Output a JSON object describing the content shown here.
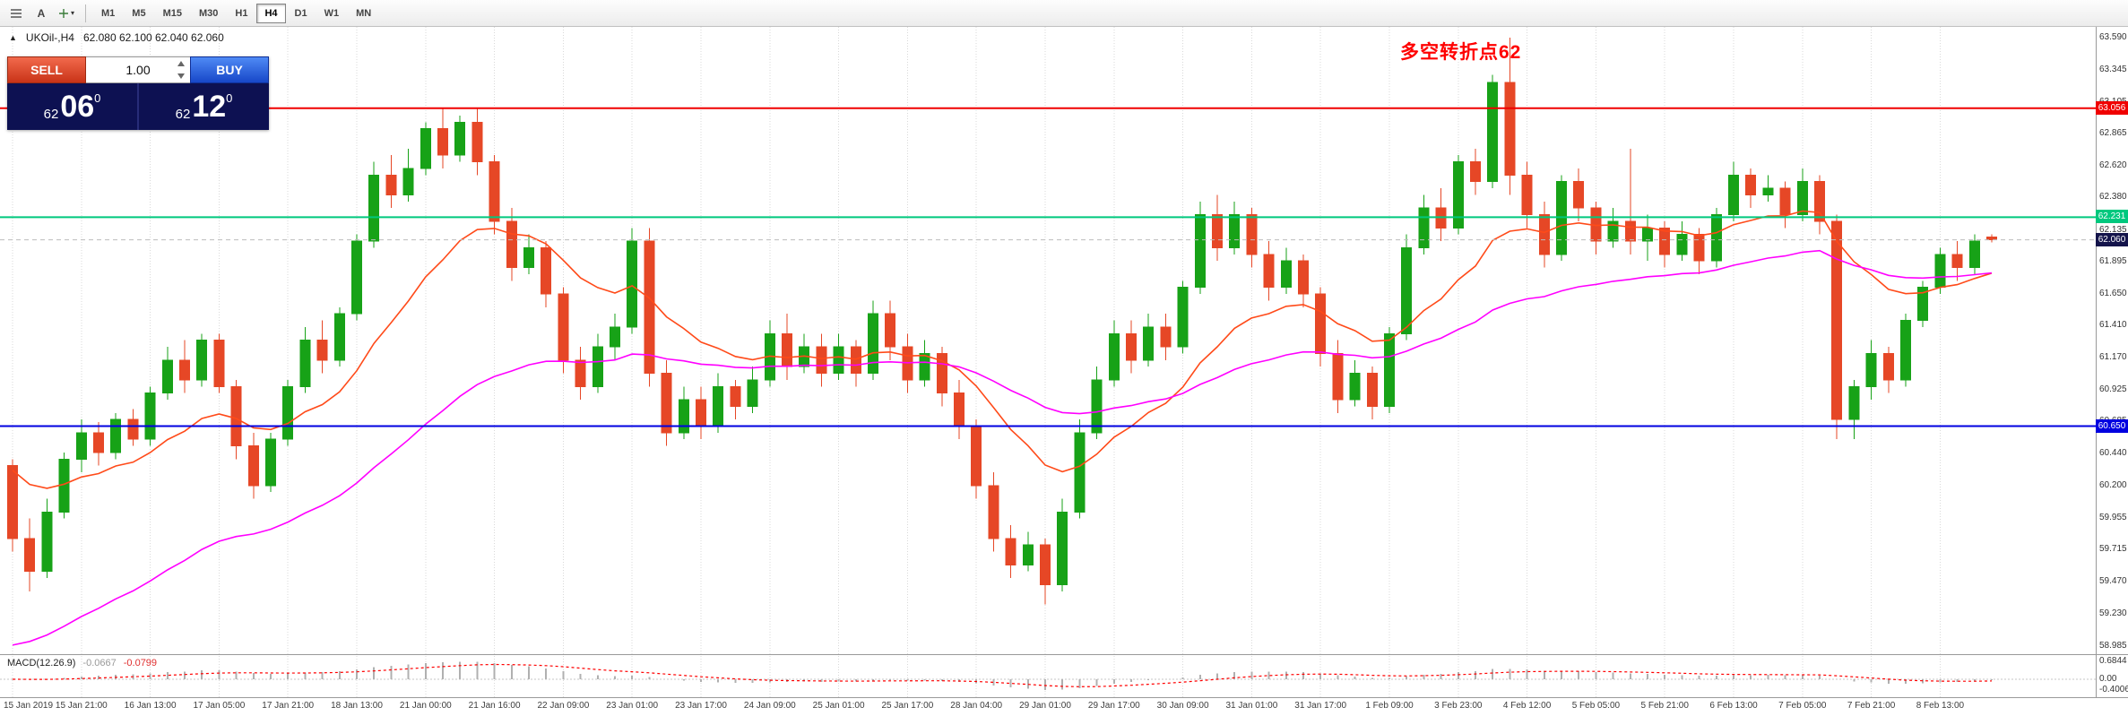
{
  "toolbar": {
    "text_tool_label": "A",
    "timeframes": [
      "M1",
      "M5",
      "M15",
      "M30",
      "H1",
      "H4",
      "D1",
      "W1",
      "MN"
    ],
    "active_timeframe": "H4"
  },
  "chart": {
    "symbol_header": "UKOil-,H4",
    "ohlc": "62.080 62.100 62.040 62.060",
    "annotation": "多空转折点62",
    "annotation_color": "#ff0000",
    "price_axis_labels": [
      "63.590",
      "63.345",
      "63.105",
      "62.865",
      "62.620",
      "62.380",
      "62.135",
      "61.895",
      "61.650",
      "61.410",
      "61.170",
      "60.925",
      "60.685",
      "60.440",
      "60.200",
      "59.955",
      "59.715",
      "59.470",
      "59.230",
      "58.985"
    ],
    "price_lines": [
      {
        "value": 63.056,
        "label": "63.056",
        "tag_color": "#f00000",
        "line_color": "#f00000",
        "dashed": false
      },
      {
        "value": 62.231,
        "label": "62.231",
        "tag_color": "#00c87e",
        "line_color": "#00c87e",
        "dashed": false
      },
      {
        "value": 62.06,
        "label": "62.060",
        "tag_color": "#14144b",
        "line_color": "#bcbcbc",
        "dashed": true
      },
      {
        "value": 60.65,
        "label": "60.650",
        "tag_color": "#0000e0",
        "line_color": "#0000e0",
        "dashed": false
      }
    ]
  },
  "trade_panel": {
    "sell_label": "SELL",
    "buy_label": "BUY",
    "volume": "1.00",
    "bid_whole": "62",
    "bid_big": "06",
    "bid_sup": "0",
    "ask_whole": "62",
    "ask_big": "12",
    "ask_sup": "0"
  },
  "macd": {
    "label": "MACD(12.26.9)",
    "value_main": "-0.0667",
    "value_signal": "-0.0799",
    "axis_labels": [
      "0.6844",
      "0.00",
      "-0.4006"
    ]
  },
  "chart_data": {
    "type": "candlestick",
    "symbol": "UKOil-",
    "timeframe": "H4",
    "ohlc_current": {
      "open": 62.08,
      "high": 62.1,
      "low": 62.04,
      "close": 62.06
    },
    "price_range": [
      58.985,
      63.59
    ],
    "horizontal_levels": [
      63.056,
      62.231,
      62.06,
      60.65
    ],
    "label_every": 4,
    "time_labels": [
      "15 Jan 2019",
      "15 Jan 21:00",
      "16 Jan 13:00",
      "17 Jan 05:00",
      "17 Jan 21:00",
      "18 Jan 13:00",
      "21 Jan 00:00",
      "21 Jan 16:00",
      "22 Jan 09:00",
      "23 Jan 01:00",
      "23 Jan 17:00",
      "24 Jan 09:00",
      "25 Jan 01:00",
      "25 Jan 17:00",
      "28 Jan 04:00",
      "29 Jan 01:00",
      "29 Jan 17:00",
      "30 Jan 09:00",
      "31 Jan 01:00",
      "31 Jan 17:00",
      "1 Feb 09:00",
      "3 Feb 23:00",
      "4 Feb 12:00",
      "5 Feb 05:00",
      "5 Feb 21:00",
      "6 Feb 13:00",
      "7 Feb 05:00",
      "7 Feb 21:00",
      "8 Feb 13:00"
    ],
    "candles": [
      [
        60.35,
        60.4,
        59.7,
        59.8
      ],
      [
        59.8,
        59.95,
        59.4,
        59.55
      ],
      [
        59.55,
        60.1,
        59.5,
        60.0
      ],
      [
        60.0,
        60.45,
        59.95,
        60.4
      ],
      [
        60.4,
        60.7,
        60.3,
        60.6
      ],
      [
        60.6,
        60.68,
        60.35,
        60.45
      ],
      [
        60.45,
        60.75,
        60.4,
        60.7
      ],
      [
        60.7,
        60.78,
        60.5,
        60.55
      ],
      [
        60.55,
        60.95,
        60.5,
        60.9
      ],
      [
        60.9,
        61.25,
        60.85,
        61.15
      ],
      [
        61.15,
        61.3,
        60.9,
        61.0
      ],
      [
        61.0,
        61.35,
        60.95,
        61.3
      ],
      [
        61.3,
        61.35,
        60.9,
        60.95
      ],
      [
        60.95,
        61.0,
        60.4,
        60.5
      ],
      [
        60.5,
        60.6,
        60.1,
        60.2
      ],
      [
        60.2,
        60.6,
        60.15,
        60.55
      ],
      [
        60.55,
        61.0,
        60.5,
        60.95
      ],
      [
        60.95,
        61.4,
        60.9,
        61.3
      ],
      [
        61.3,
        61.45,
        61.05,
        61.15
      ],
      [
        61.15,
        61.55,
        61.1,
        61.5
      ],
      [
        61.5,
        62.1,
        61.45,
        62.05
      ],
      [
        62.05,
        62.65,
        62.0,
        62.55
      ],
      [
        62.55,
        62.7,
        62.3,
        62.4
      ],
      [
        62.4,
        62.75,
        62.35,
        62.6
      ],
      [
        62.6,
        62.95,
        62.55,
        62.9
      ],
      [
        62.9,
        63.05,
        62.6,
        62.7
      ],
      [
        62.7,
        63.0,
        62.65,
        62.95
      ],
      [
        62.95,
        63.05,
        62.55,
        62.65
      ],
      [
        62.65,
        62.7,
        62.1,
        62.2
      ],
      [
        62.2,
        62.3,
        61.75,
        61.85
      ],
      [
        61.85,
        62.1,
        61.8,
        62.0
      ],
      [
        62.0,
        62.05,
        61.55,
        61.65
      ],
      [
        61.65,
        61.7,
        61.05,
        61.15
      ],
      [
        61.15,
        61.25,
        60.85,
        60.95
      ],
      [
        60.95,
        61.35,
        60.9,
        61.25
      ],
      [
        61.25,
        61.5,
        61.15,
        61.4
      ],
      [
        61.4,
        62.15,
        61.35,
        62.05
      ],
      [
        62.05,
        62.15,
        60.95,
        61.05
      ],
      [
        61.05,
        61.15,
        60.5,
        60.6
      ],
      [
        60.6,
        60.95,
        60.55,
        60.85
      ],
      [
        60.85,
        60.95,
        60.55,
        60.65
      ],
      [
        60.65,
        61.05,
        60.6,
        60.95
      ],
      [
        60.95,
        61.0,
        60.7,
        60.8
      ],
      [
        60.8,
        61.1,
        60.75,
        61.0
      ],
      [
        61.0,
        61.45,
        60.95,
        61.35
      ],
      [
        61.35,
        61.5,
        61.0,
        61.1
      ],
      [
        61.1,
        61.35,
        61.05,
        61.25
      ],
      [
        61.25,
        61.35,
        60.95,
        61.05
      ],
      [
        61.05,
        61.35,
        61.0,
        61.25
      ],
      [
        61.25,
        61.3,
        60.95,
        61.05
      ],
      [
        61.05,
        61.6,
        61.0,
        61.5
      ],
      [
        61.5,
        61.6,
        61.15,
        61.25
      ],
      [
        61.25,
        61.35,
        60.9,
        61.0
      ],
      [
        61.0,
        61.3,
        60.95,
        61.2
      ],
      [
        61.2,
        61.25,
        60.8,
        60.9
      ],
      [
        60.9,
        61.0,
        60.55,
        60.65
      ],
      [
        60.65,
        60.7,
        60.1,
        60.2
      ],
      [
        60.2,
        60.3,
        59.7,
        59.8
      ],
      [
        59.8,
        59.9,
        59.5,
        59.6
      ],
      [
        59.6,
        59.85,
        59.55,
        59.75
      ],
      [
        59.75,
        59.8,
        59.3,
        59.45
      ],
      [
        59.45,
        60.1,
        59.4,
        60.0
      ],
      [
        60.0,
        60.7,
        59.95,
        60.6
      ],
      [
        60.6,
        61.1,
        60.55,
        61.0
      ],
      [
        61.0,
        61.45,
        60.95,
        61.35
      ],
      [
        61.35,
        61.45,
        61.05,
        61.15
      ],
      [
        61.15,
        61.5,
        61.1,
        61.4
      ],
      [
        61.4,
        61.5,
        61.15,
        61.25
      ],
      [
        61.25,
        61.75,
        61.2,
        61.7
      ],
      [
        61.7,
        62.35,
        61.65,
        62.25
      ],
      [
        62.25,
        62.4,
        61.9,
        62.0
      ],
      [
        62.0,
        62.35,
        61.95,
        62.25
      ],
      [
        62.25,
        62.3,
        61.85,
        61.95
      ],
      [
        61.95,
        62.05,
        61.6,
        61.7
      ],
      [
        61.7,
        62.0,
        61.65,
        61.9
      ],
      [
        61.9,
        61.95,
        61.55,
        61.65
      ],
      [
        61.65,
        61.7,
        61.1,
        61.2
      ],
      [
        61.2,
        61.3,
        60.75,
        60.85
      ],
      [
        60.85,
        61.15,
        60.8,
        61.05
      ],
      [
        61.05,
        61.1,
        60.7,
        60.8
      ],
      [
        60.8,
        61.4,
        60.75,
        61.35
      ],
      [
        61.35,
        62.1,
        61.3,
        62.0
      ],
      [
        62.0,
        62.4,
        61.95,
        62.3
      ],
      [
        62.3,
        62.45,
        62.05,
        62.15
      ],
      [
        62.15,
        62.7,
        62.1,
        62.65
      ],
      [
        62.65,
        62.75,
        62.4,
        62.5
      ],
      [
        62.5,
        63.31,
        62.45,
        63.25
      ],
      [
        63.25,
        63.59,
        62.4,
        62.55
      ],
      [
        62.55,
        62.65,
        62.15,
        62.25
      ],
      [
        62.25,
        62.35,
        61.85,
        61.95
      ],
      [
        61.95,
        62.55,
        61.9,
        62.5
      ],
      [
        62.5,
        62.6,
        62.2,
        62.3
      ],
      [
        62.3,
        62.35,
        61.95,
        62.05
      ],
      [
        62.05,
        62.3,
        62.0,
        62.2
      ],
      [
        62.2,
        62.75,
        61.95,
        62.05
      ],
      [
        62.05,
        62.25,
        61.9,
        62.15
      ],
      [
        62.15,
        62.2,
        61.85,
        61.95
      ],
      [
        61.95,
        62.2,
        61.9,
        62.1
      ],
      [
        62.1,
        62.15,
        61.8,
        61.9
      ],
      [
        61.9,
        62.3,
        61.85,
        62.25
      ],
      [
        62.25,
        62.65,
        62.2,
        62.55
      ],
      [
        62.55,
        62.6,
        62.3,
        62.4
      ],
      [
        62.4,
        62.55,
        62.35,
        62.45
      ],
      [
        62.45,
        62.5,
        62.15,
        62.25
      ],
      [
        62.25,
        62.6,
        62.2,
        62.5
      ],
      [
        62.5,
        62.55,
        62.1,
        62.2
      ],
      [
        62.2,
        62.25,
        60.55,
        60.7
      ],
      [
        60.7,
        61.0,
        60.55,
        60.95
      ],
      [
        60.95,
        61.3,
        60.85,
        61.2
      ],
      [
        61.2,
        61.25,
        60.9,
        61.0
      ],
      [
        61.0,
        61.5,
        60.95,
        61.45
      ],
      [
        61.45,
        61.75,
        61.4,
        61.7
      ],
      [
        61.7,
        62.0,
        61.65,
        61.95
      ],
      [
        61.95,
        62.05,
        61.75,
        61.85
      ],
      [
        61.85,
        62.1,
        61.8,
        62.05
      ],
      [
        62.08,
        62.1,
        62.04,
        62.06
      ]
    ],
    "macd": {
      "params": "12,26,9",
      "main": -0.0667,
      "signal": -0.0799,
      "scale_max": 0.6844,
      "scale_min": -0.4006
    },
    "colors": {
      "up": "#17a217",
      "down": "#e64726",
      "ma_fast": "#ff4a19",
      "ma_slow": "#ff00ff",
      "grid": "#d9d9d9",
      "macd_hist": "#b0b0b0",
      "macd_signal": "#ff0000"
    }
  }
}
